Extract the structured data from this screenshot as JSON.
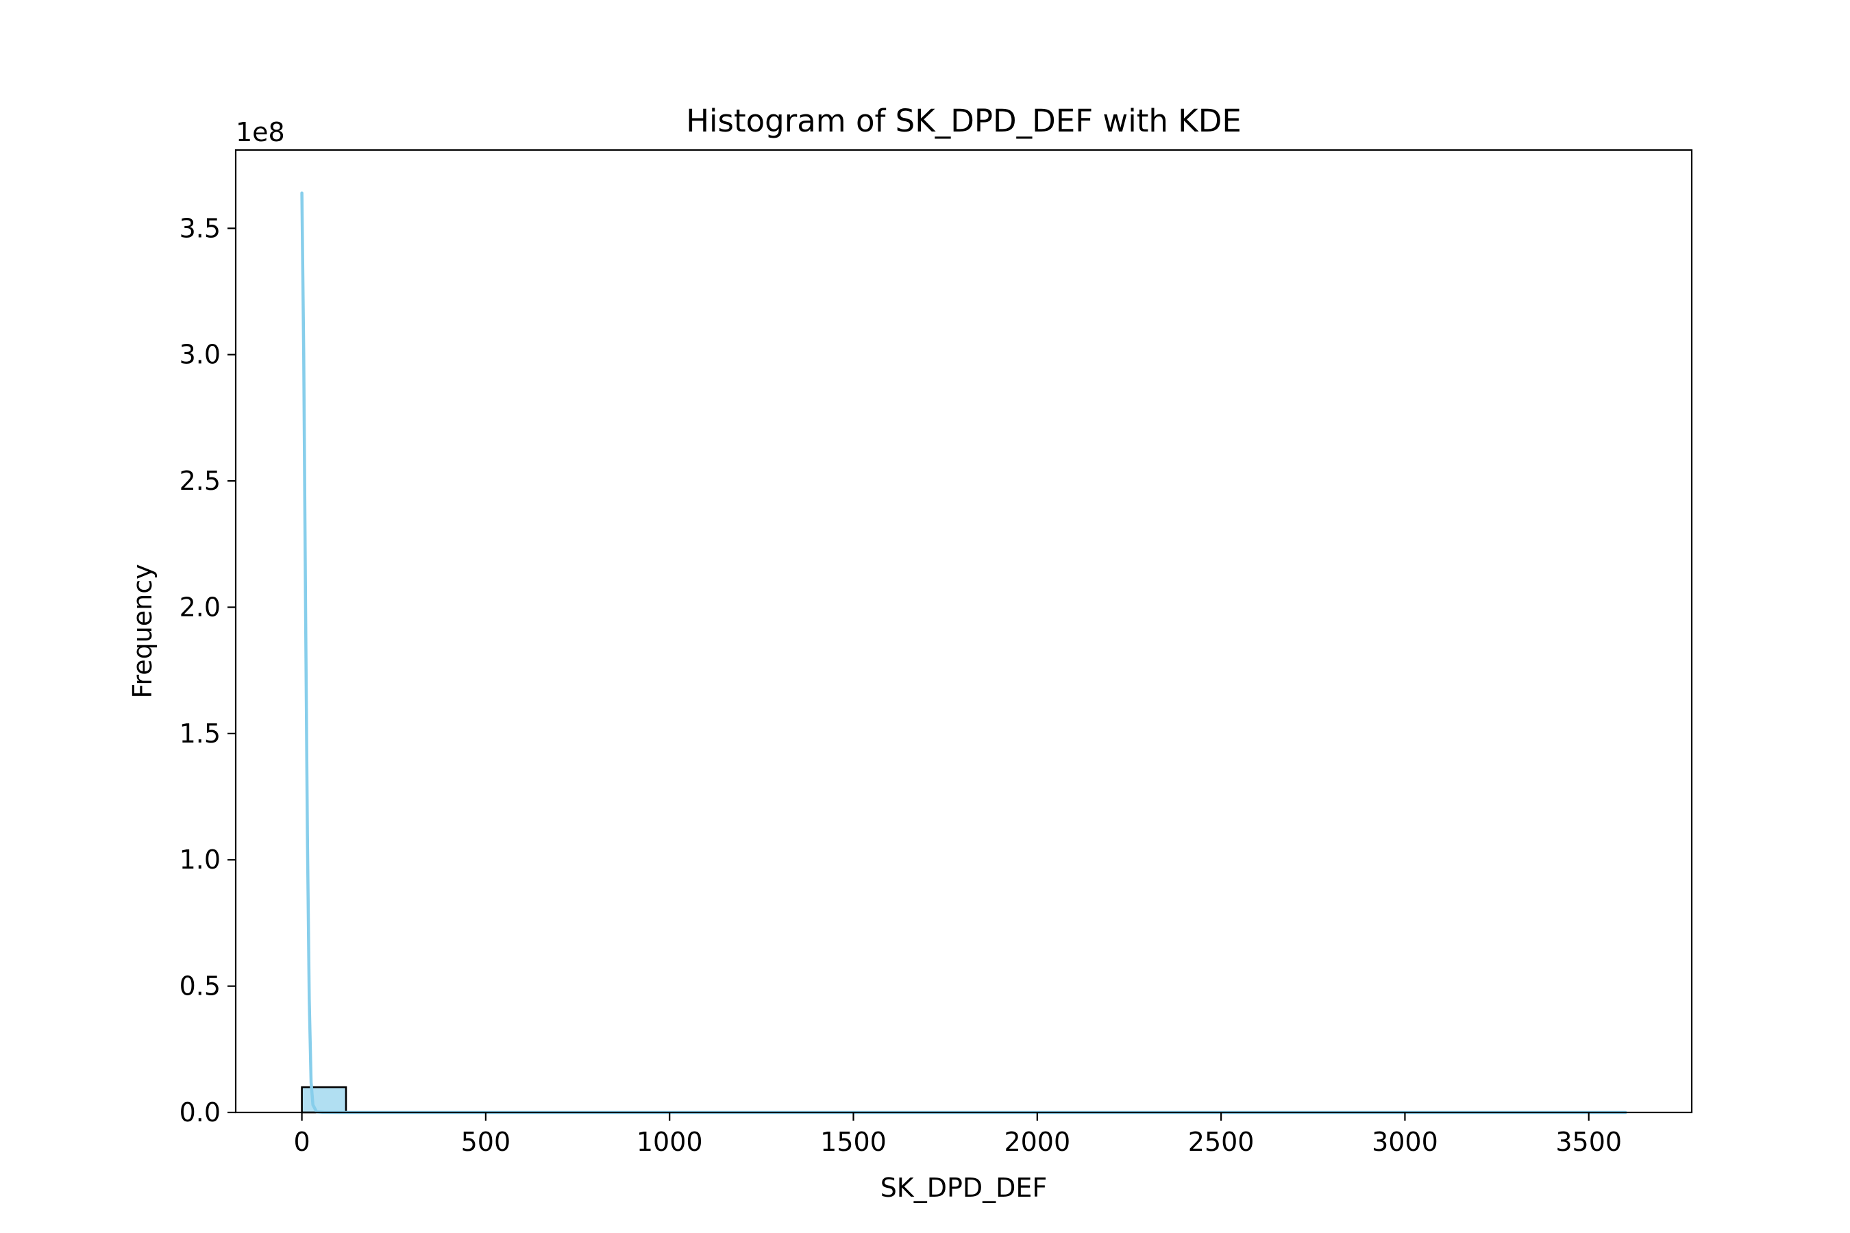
{
  "chart_data": {
    "type": "bar",
    "title": "Histogram of SK_DPD_DEF with KDE",
    "xlabel": "SK_DPD_DEF",
    "ylabel": "Frequency",
    "y_offset_text": "1e8",
    "y_scale_factor": 100000000,
    "xlim": [
      -180,
      3780
    ],
    "ylim": [
      0,
      381000000
    ],
    "xticks": [
      0,
      500,
      1000,
      1500,
      2000,
      2500,
      3000,
      3500
    ],
    "xtick_labels": [
      "0",
      "500",
      "1000",
      "1500",
      "2000",
      "2500",
      "3000",
      "3500"
    ],
    "yticks": [
      0,
      50000000,
      100000000,
      150000000,
      200000000,
      250000000,
      300000000,
      350000000
    ],
    "ytick_labels": [
      "0.0",
      "0.5",
      "1.0",
      "1.5",
      "2.0",
      "2.5",
      "3.0",
      "3.5"
    ],
    "bins": [
      {
        "x0": 0,
        "x1": 120,
        "count": 10000000
      },
      {
        "x0": 120,
        "x1": 240,
        "count": 15000
      },
      {
        "x0": 240,
        "x1": 360,
        "count": 6000
      },
      {
        "x0": 360,
        "x1": 480,
        "count": 3000
      },
      {
        "x0": 480,
        "x1": 600,
        "count": 2000
      },
      {
        "x0": 600,
        "x1": 720,
        "count": 1500
      },
      {
        "x0": 720,
        "x1": 840,
        "count": 1000
      },
      {
        "x0": 840,
        "x1": 960,
        "count": 800
      },
      {
        "x0": 960,
        "x1": 1080,
        "count": 600
      },
      {
        "x0": 1080,
        "x1": 1200,
        "count": 500
      },
      {
        "x0": 1200,
        "x1": 1320,
        "count": 400
      },
      {
        "x0": 1320,
        "x1": 1440,
        "count": 300
      },
      {
        "x0": 1440,
        "x1": 1560,
        "count": 300
      },
      {
        "x0": 1560,
        "x1": 1680,
        "count": 200
      },
      {
        "x0": 1680,
        "x1": 1800,
        "count": 200
      },
      {
        "x0": 1800,
        "x1": 1920,
        "count": 200
      },
      {
        "x0": 1920,
        "x1": 2040,
        "count": 150
      },
      {
        "x0": 2040,
        "x1": 2160,
        "count": 150
      },
      {
        "x0": 2160,
        "x1": 2280,
        "count": 100
      },
      {
        "x0": 2280,
        "x1": 2400,
        "count": 100
      },
      {
        "x0": 2400,
        "x1": 2520,
        "count": 100
      },
      {
        "x0": 2520,
        "x1": 2640,
        "count": 100
      },
      {
        "x0": 2640,
        "x1": 2760,
        "count": 80
      },
      {
        "x0": 2760,
        "x1": 2880,
        "count": 80
      },
      {
        "x0": 2880,
        "x1": 3000,
        "count": 60
      },
      {
        "x0": 3000,
        "x1": 3120,
        "count": 60
      },
      {
        "x0": 3120,
        "x1": 3240,
        "count": 50
      },
      {
        "x0": 3240,
        "x1": 3360,
        "count": 40
      },
      {
        "x0": 3360,
        "x1": 3480,
        "count": 40
      },
      {
        "x0": 3480,
        "x1": 3600,
        "count": 30
      }
    ],
    "kde": {
      "x": [
        0,
        5,
        10,
        15,
        20,
        25,
        30,
        40,
        60,
        100,
        200,
        500,
        1000,
        2000,
        3000,
        3600
      ],
      "y": [
        364000000,
        300000000,
        200000000,
        110000000,
        45000000,
        12000000,
        3000000,
        200000,
        30000,
        10000,
        3000,
        1000,
        500,
        200,
        100,
        50
      ]
    },
    "colors": {
      "bar_fill": "#87ceeb",
      "bar_fill_opacity": 0.65,
      "bar_edge": "#000000",
      "kde_line": "#87ceeb",
      "axes": "#000000"
    },
    "grid": false,
    "legend": "none"
  }
}
